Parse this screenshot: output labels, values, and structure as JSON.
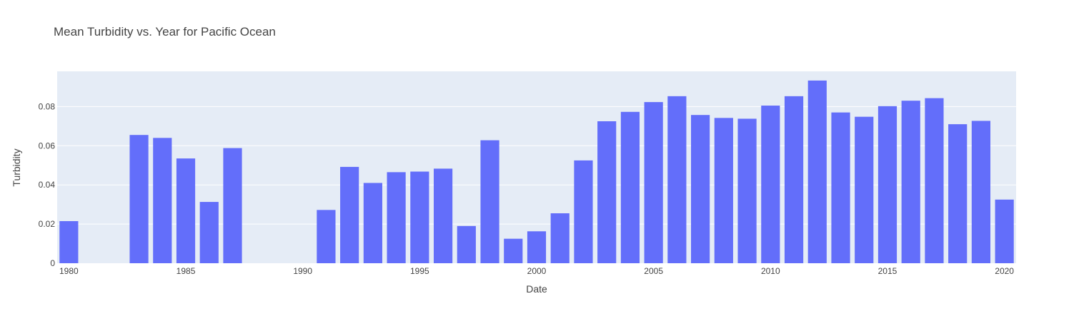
{
  "chart_data": {
    "type": "bar",
    "title": "Mean Turbidity vs. Year for Pacific Ocean",
    "xlabel": "Date",
    "ylabel": "Turbidity",
    "x": [
      1980,
      1983,
      1984,
      1985,
      1986,
      1987,
      1991,
      1992,
      1993,
      1994,
      1995,
      1996,
      1997,
      1998,
      1999,
      2000,
      2001,
      2002,
      2003,
      2004,
      2005,
      2006,
      2007,
      2008,
      2009,
      2010,
      2011,
      2012,
      2013,
      2014,
      2015,
      2016,
      2017,
      2018,
      2019,
      2020
    ],
    "values": [
      0.0215,
      0.0655,
      0.064,
      0.0535,
      0.0313,
      0.0588,
      0.0272,
      0.0492,
      0.041,
      0.0465,
      0.0468,
      0.0483,
      0.019,
      0.0628,
      0.0125,
      0.0163,
      0.0255,
      0.0525,
      0.0725,
      0.0773,
      0.0823,
      0.0853,
      0.0757,
      0.0742,
      0.0738,
      0.0805,
      0.0853,
      0.0933,
      0.077,
      0.0748,
      0.0802,
      0.083,
      0.0843,
      0.071,
      0.0727,
      0.0325
    ],
    "xlim": [
      1979.5,
      2020.5
    ],
    "ylim": [
      0,
      0.098
    ],
    "x_ticks": [
      1980,
      1985,
      1990,
      1995,
      2000,
      2005,
      2010,
      2015,
      2020
    ],
    "y_ticks": [
      0,
      0.02,
      0.04,
      0.06,
      0.08
    ],
    "y_tick_labels": [
      "0",
      "0.02",
      "0.04",
      "0.06",
      "0.08"
    ],
    "grid": true,
    "colors": {
      "bar": "#636efa",
      "plot_bg": "#e5ecf6",
      "grid": "#ffffff"
    }
  }
}
